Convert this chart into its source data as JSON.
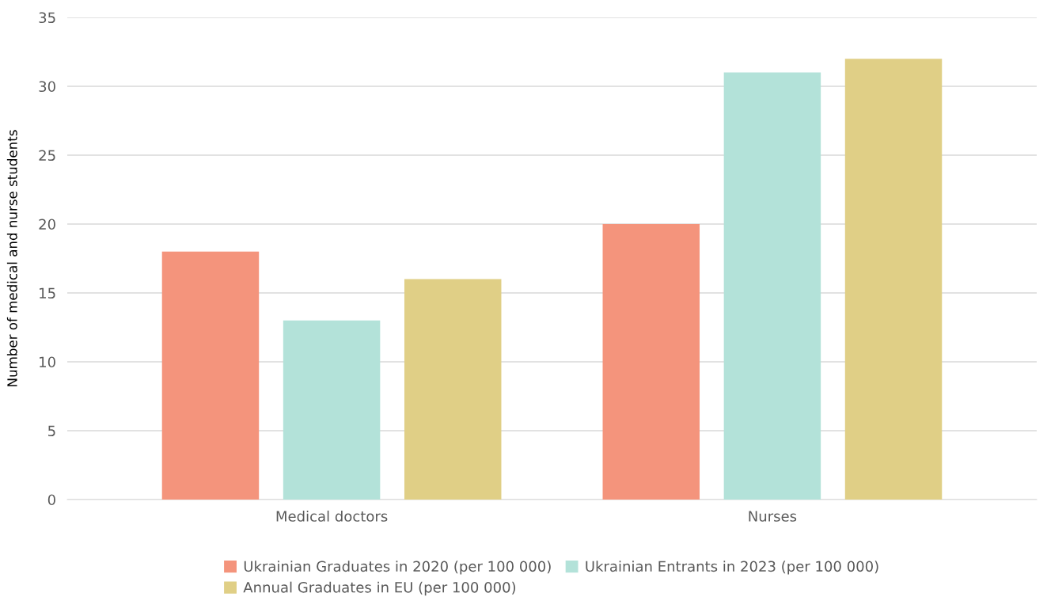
{
  "chart_data": {
    "type": "bar",
    "ylabel": "Number of medical and nurse students",
    "categories": [
      "Medical doctors",
      "Nurses"
    ],
    "series": [
      {
        "name": "Ukrainian Graduates in 2020 (per 100 000)",
        "color": "#f4947c",
        "values": [
          18,
          20
        ]
      },
      {
        "name": "Ukrainian Entrants in 2023 (per 100 000)",
        "color": "#b3e2d9",
        "values": [
          13,
          31
        ]
      },
      {
        "name": "Annual Graduates in EU (per 100 000)",
        "color": "#e0cf86",
        "values": [
          16,
          32
        ]
      }
    ],
    "ylim": [
      0,
      35
    ],
    "yticks": [
      0,
      5,
      10,
      15,
      20,
      25,
      30,
      35
    ],
    "grid": "y",
    "legend": "bottom"
  }
}
